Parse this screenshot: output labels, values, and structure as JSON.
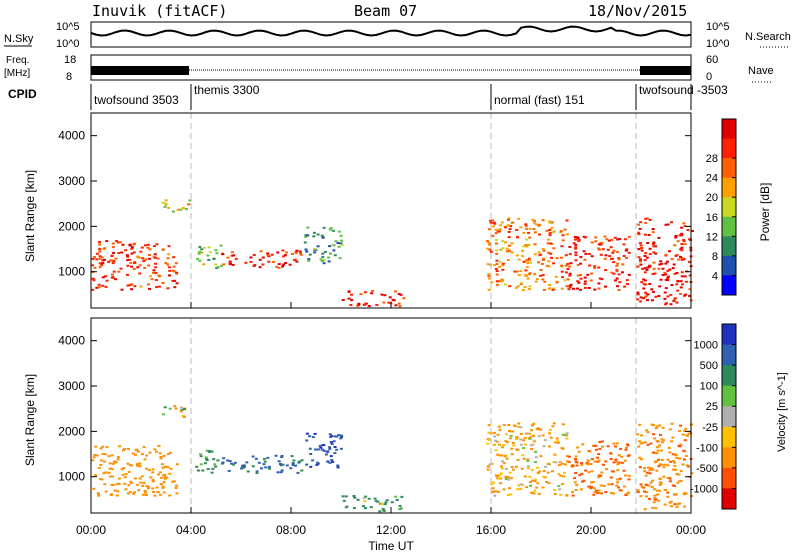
{
  "header": {
    "station": "Inuvik (fitACF)",
    "beam": "Beam 07",
    "date": "18/Nov/2015"
  },
  "noise_panel": {
    "left_label": "N.Sky",
    "left_ticks": [
      "10^5",
      "10^0"
    ],
    "right_ticks": [
      "10^5",
      "10^0"
    ],
    "right_label": "N.Search"
  },
  "freq_panel": {
    "left_label_line1": "Freq.",
    "left_label_line2": "[MHz]",
    "left_ticks": [
      "18",
      "8"
    ],
    "right_ticks": [
      "60",
      "0"
    ],
    "right_label": "Nave"
  },
  "cpid": {
    "label": "CPID",
    "segments": [
      {
        "name": "twofsound 3503",
        "start_hour": 0,
        "end_hour": 4
      },
      {
        "name": "themis 3300",
        "start_hour": 4,
        "end_hour": 16
      },
      {
        "name": "normal (fast) 151",
        "start_hour": 16,
        "end_hour": 21.8
      },
      {
        "name": "twofsound -3503",
        "start_hour": 21.8,
        "end_hour": 24
      }
    ]
  },
  "x_axis": {
    "title": "Time UT",
    "ticks": [
      "00:00",
      "04:00",
      "08:00",
      "12:00",
      "16:00",
      "20:00",
      "00:00"
    ]
  },
  "chart_data": [
    {
      "type": "heatmap",
      "title": "Power",
      "ylabel": "Slant Range [km]",
      "yticks": [
        "1000",
        "2000",
        "3000",
        "4000"
      ],
      "ylim": [
        200,
        4500
      ],
      "xlim_hours": [
        0,
        24
      ],
      "colorbar": {
        "label": "Power [dB]",
        "ticks": [
          "4",
          "8",
          "12",
          "16",
          "20",
          "24",
          "28"
        ],
        "colors": [
          "#0000ff",
          "#2050b0",
          "#2e8a5a",
          "#60c040",
          "#c8d820",
          "#ffa000",
          "#ff6000",
          "#ff2000",
          "#e00000"
        ]
      },
      "regions": [
        {
          "t0": 0,
          "t1": 3.4,
          "r0": 600,
          "r1": 1700,
          "level": 26
        },
        {
          "t0": 2.8,
          "t1": 3.9,
          "r0": 2300,
          "r1": 2600,
          "level": 18
        },
        {
          "t0": 4.1,
          "t1": 5.2,
          "r0": 1100,
          "r1": 1600,
          "level": 14
        },
        {
          "t0": 5.2,
          "t1": 8.4,
          "r0": 1100,
          "r1": 1500,
          "level": 27
        },
        {
          "t0": 8.5,
          "t1": 10.0,
          "r0": 1200,
          "r1": 2000,
          "level": 10
        },
        {
          "t0": 10.0,
          "t1": 12.5,
          "r0": 250,
          "r1": 600,
          "level": 28
        },
        {
          "t0": 15.8,
          "t1": 19.0,
          "r0": 600,
          "r1": 2200,
          "level": 22
        },
        {
          "t0": 19.0,
          "t1": 21.5,
          "r0": 600,
          "r1": 1800,
          "level": 27
        },
        {
          "t0": 21.8,
          "t1": 24,
          "r0": 300,
          "r1": 2200,
          "level": 28
        }
      ]
    },
    {
      "type": "heatmap",
      "title": "Velocity",
      "ylabel": "Slant Range [km]",
      "yticks": [
        "1000",
        "2000",
        "3000",
        "4000"
      ],
      "ylim": [
        200,
        4500
      ],
      "xlim_hours": [
        0,
        24
      ],
      "colorbar": {
        "label": "Velocity [m s^-1]",
        "ticks": [
          "1000",
          "500",
          "100",
          "25",
          "-25",
          "-100",
          "-500",
          "-1000"
        ],
        "colors": [
          "#2030c0",
          "#3060b0",
          "#2e8a5a",
          "#60c040",
          "#b0b0b0",
          "#ffc000",
          "#ff9000",
          "#ff5000",
          "#e00000"
        ]
      },
      "regions": [
        {
          "t0": 0,
          "t1": 3.4,
          "r0": 600,
          "r1": 1700,
          "level": -300
        },
        {
          "t0": 2.8,
          "t1": 3.9,
          "r0": 2300,
          "r1": 2600,
          "level": 0
        },
        {
          "t0": 4.1,
          "t1": 5.2,
          "r0": 1100,
          "r1": 1600,
          "level": 200
        },
        {
          "t0": 5.2,
          "t1": 8.4,
          "r0": 1100,
          "r1": 1500,
          "level": 600
        },
        {
          "t0": 8.5,
          "t1": 10.0,
          "r0": 1200,
          "r1": 2000,
          "level": 900
        },
        {
          "t0": 10.0,
          "t1": 12.5,
          "r0": 250,
          "r1": 600,
          "level": 150
        },
        {
          "t0": 15.8,
          "t1": 19.0,
          "r0": 600,
          "r1": 2200,
          "level": -150
        },
        {
          "t0": 19.0,
          "t1": 21.5,
          "r0": 600,
          "r1": 1800,
          "level": -500
        },
        {
          "t0": 21.8,
          "t1": 24,
          "r0": 300,
          "r1": 2200,
          "level": -400
        }
      ]
    }
  ]
}
